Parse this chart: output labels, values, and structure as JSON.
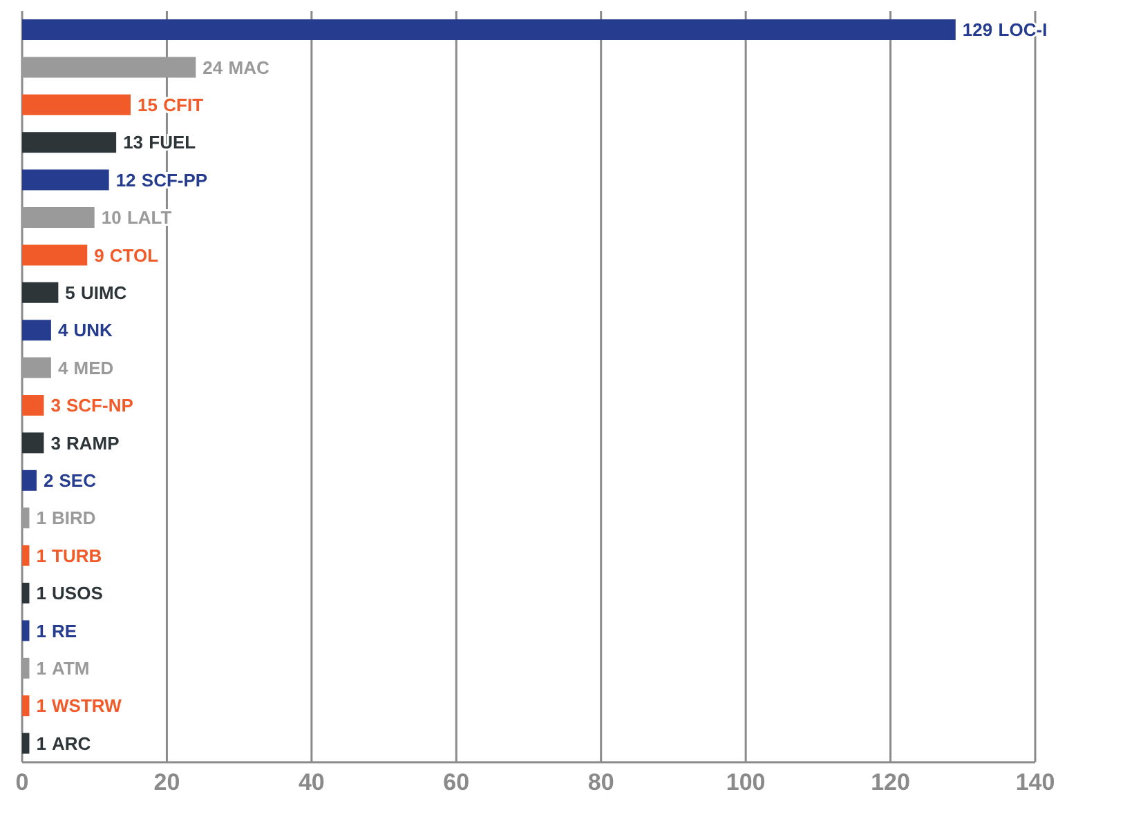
{
  "chart_data": {
    "type": "bar",
    "orientation": "horizontal",
    "categories": [
      "LOC-I",
      "MAC",
      "CFIT",
      "FUEL",
      "SCF-PP",
      "LALT",
      "CTOL",
      "UIMC",
      "UNK",
      "MED",
      "SCF-NP",
      "RAMP",
      "SEC",
      "BIRD",
      "TURB",
      "USOS",
      "RE",
      "ATM",
      "WSTRW",
      "ARC"
    ],
    "values": [
      129,
      24,
      15,
      13,
      12,
      10,
      9,
      5,
      4,
      4,
      3,
      3,
      2,
      1,
      1,
      1,
      1,
      1,
      1,
      1
    ],
    "colors": [
      "#253c8f",
      "#9a9a9a",
      "#f15a29",
      "#2d3538",
      "#253c8f",
      "#9a9a9a",
      "#f15a29",
      "#2d3538",
      "#253c8f",
      "#9a9a9a",
      "#f15a29",
      "#2d3538",
      "#253c8f",
      "#9a9a9a",
      "#f15a29",
      "#2d3538",
      "#253c8f",
      "#9a9a9a",
      "#f15a29",
      "#2d3538"
    ],
    "xlim": [
      0,
      140
    ],
    "xticks": [
      0,
      20,
      40,
      60,
      80,
      100,
      120,
      140
    ],
    "grid": "x",
    "tick_labels": "x",
    "data_labels": true
  }
}
